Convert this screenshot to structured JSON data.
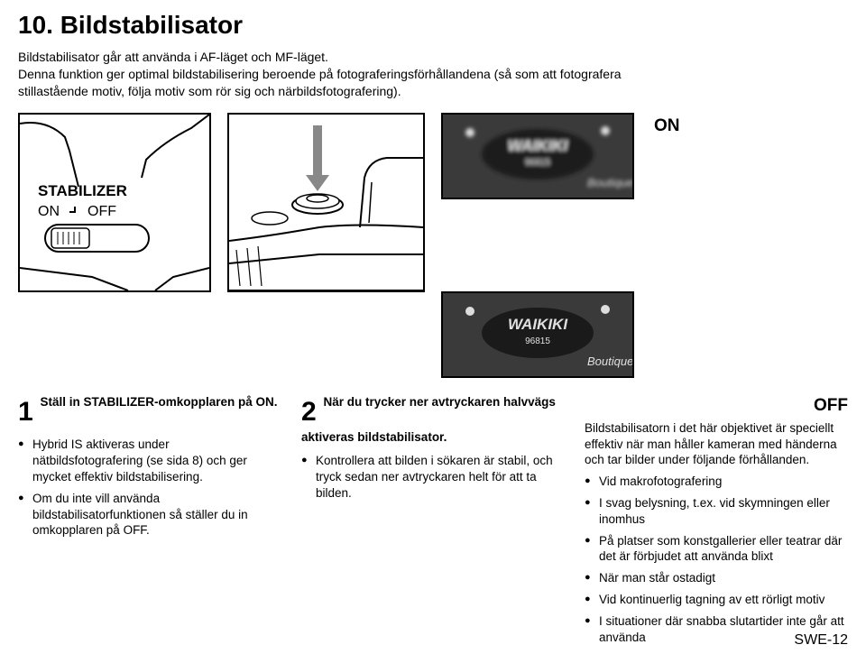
{
  "title": "10. Bildstabilisator",
  "intro": "Bildstabilisator går att använda i AF-läget och MF-läget.\nDenna funktion ger optimal bildstabilisering beroende på fotograferingsförhållandena (så som att fotografera stillastående motiv, följa motiv som rör sig och närbildsfotografering).",
  "figures": {
    "stabilizer_label": "STABILIZER",
    "on_label": "ON",
    "off_label_switch": "OFF",
    "waikiki": "WAIKIKI",
    "boutique": "Boutique",
    "zip": "96815"
  },
  "labels": {
    "on": "ON",
    "off": "OFF"
  },
  "col1": {
    "num": "1",
    "head": "Ställ in STABILIZER-omkopplaren på ON.",
    "items": [
      "Hybrid IS aktiveras under nätbildsfotografering (se sida 8) och ger mycket effektiv bildstabilisering.",
      "Om du inte vill använda bildstabilisatorfunktionen så ställer du in omkopplaren på OFF."
    ]
  },
  "col2": {
    "num": "2",
    "head": "När du trycker ner avtryckaren halvvägs aktiveras bildstabilisator.",
    "items": [
      "Kontrollera att bilden i sökaren är stabil, och tryck sedan ner avtryckaren helt för att ta bilden."
    ]
  },
  "col3": {
    "off": "OFF",
    "para": "Bildstabilisatorn i det här objektivet är speciellt effektiv när man håller kameran med händerna och tar bilder under följande förhållanden.",
    "items": [
      "Vid makrofotografering",
      "I svag belysning, t.ex. vid skymningen eller inomhus",
      "På platser som konstgallerier eller teatrar där det är förbjudet att använda blixt",
      "När man står ostadigt",
      "Vid kontinuerlig tagning av ett rörligt motiv",
      "I situationer där snabba slutartider inte går att använda"
    ]
  },
  "page": "SWE-12"
}
